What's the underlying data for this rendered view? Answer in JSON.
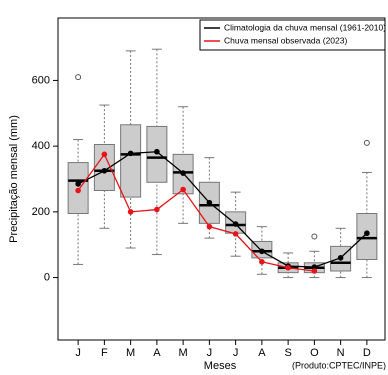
{
  "chart_data": {
    "type": "boxplot",
    "y_label": "Precipitação mensal (mm)",
    "x_label": "Meses",
    "credit": "(Produto:CPTEC/INPE)",
    "categories": [
      "J",
      "F",
      "M",
      "A",
      "M",
      "J",
      "J",
      "A",
      "S",
      "O",
      "N",
      "D"
    ],
    "box_color": "#cccccc",
    "boxes": [
      {
        "min": 40,
        "q1": 195,
        "median": 295,
        "q3": 350,
        "max": 420,
        "outliers": [
          610
        ]
      },
      {
        "min": 150,
        "q1": 265,
        "median": 325,
        "q3": 405,
        "max": 525,
        "outliers": []
      },
      {
        "min": 90,
        "q1": 245,
        "median": 375,
        "q3": 465,
        "max": 690,
        "outliers": []
      },
      {
        "min": 70,
        "q1": 290,
        "median": 365,
        "q3": 460,
        "max": 695,
        "outliers": []
      },
      {
        "min": 165,
        "q1": 255,
        "median": 320,
        "q3": 375,
        "max": 520,
        "outliers": []
      },
      {
        "min": 120,
        "q1": 165,
        "median": 220,
        "q3": 290,
        "max": 365,
        "outliers": []
      },
      {
        "min": 65,
        "q1": 135,
        "median": 160,
        "q3": 200,
        "max": 260,
        "outliers": []
      },
      {
        "min": 10,
        "q1": 60,
        "median": 80,
        "q3": 110,
        "max": 155,
        "outliers": []
      },
      {
        "min": 0,
        "q1": 15,
        "median": 30,
        "q3": 45,
        "max": 75,
        "outliers": []
      },
      {
        "min": 0,
        "q1": 15,
        "median": 30,
        "q3": 45,
        "max": 80,
        "outliers": [
          125
        ]
      },
      {
        "min": 0,
        "q1": 20,
        "median": 45,
        "q3": 95,
        "max": 150,
        "outliers": []
      },
      {
        "min": 0,
        "q1": 55,
        "median": 120,
        "q3": 195,
        "max": 320,
        "outliers": [
          410
        ]
      }
    ],
    "series": [
      {
        "name": "Climatologia da chuva mensal (1961-2010)",
        "color": "#000000",
        "values": [
          285,
          325,
          378,
          383,
          318,
          228,
          163,
          80,
          35,
          32,
          60,
          135
        ]
      },
      {
        "name": "Chuva mensal observada (2023)",
        "color": "#e8141a",
        "values": [
          265,
          375,
          200,
          207,
          268,
          155,
          133,
          48,
          30,
          20,
          null,
          null
        ]
      }
    ],
    "ylim": [
      -190,
      790
    ],
    "yticks": [
      0,
      200,
      400,
      600
    ],
    "legend": "top-right"
  }
}
